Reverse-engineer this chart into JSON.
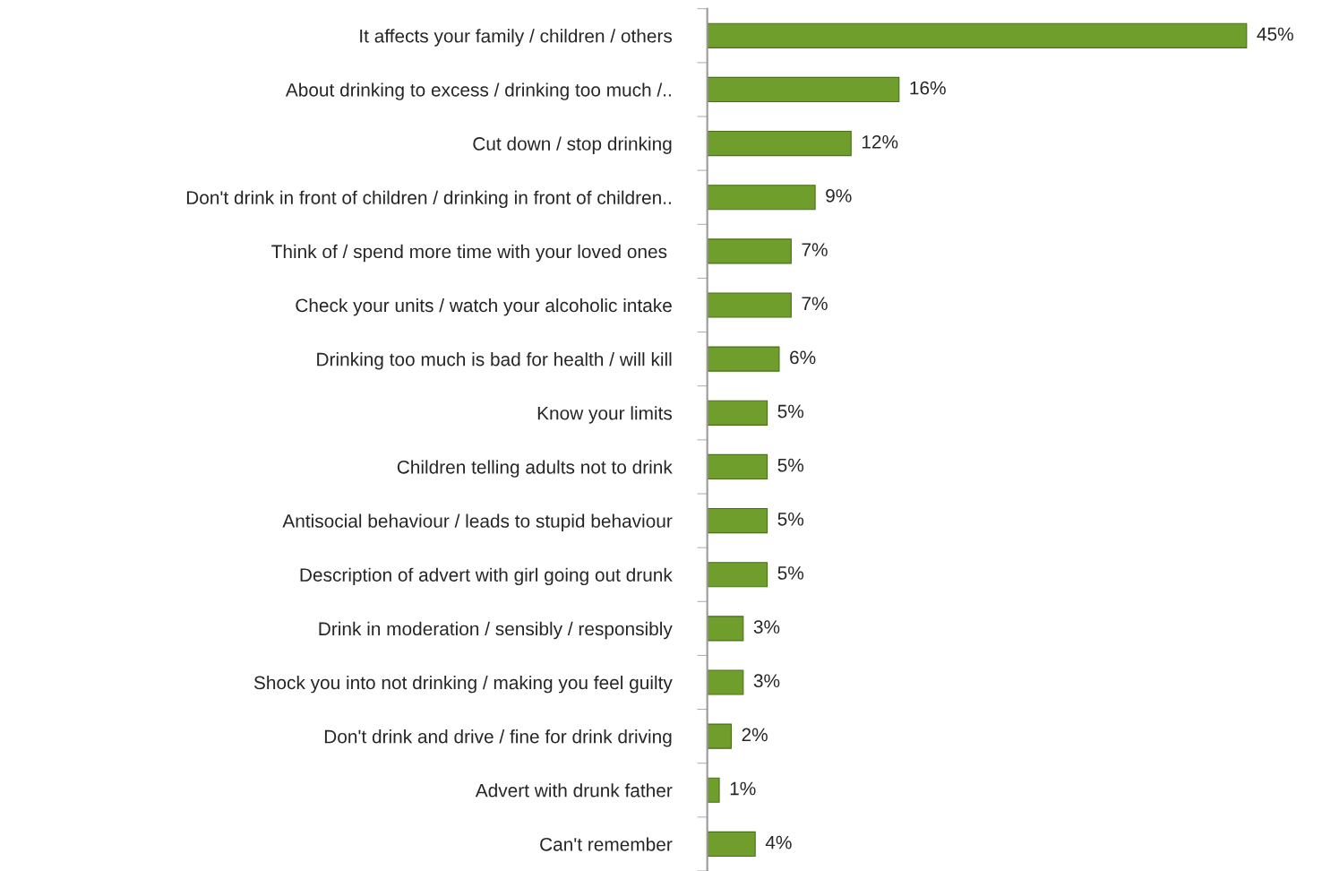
{
  "chart_data": {
    "type": "bar",
    "orientation": "horizontal",
    "categories": [
      "It affects your family / children / others",
      "About drinking to excess / drinking too much /..",
      "Cut down / stop drinking",
      "Don't drink in front of children / drinking in front of children..",
      "Think of / spend more time with your loved ones ",
      "Check your units / watch your alcoholic intake",
      "Drinking too much is bad for health / will kill",
      "Know your limits",
      "Children telling adults not to drink",
      "Antisocial behaviour / leads to stupid behaviour",
      "Description of advert with girl going out drunk",
      "Drink in moderation / sensibly / responsibly",
      "Shock you into not drinking / making you feel guilty",
      "Don't drink and drive / fine for drink driving",
      "Advert with drunk father",
      "Can't remember"
    ],
    "values": [
      45,
      16,
      12,
      9,
      7,
      7,
      6,
      5,
      5,
      5,
      5,
      3,
      3,
      2,
      1,
      4
    ],
    "value_labels": [
      "45%",
      "16%",
      "12%",
      "9%",
      "7%",
      "7%",
      "6%",
      "5%",
      "5%",
      "5%",
      "5%",
      "3%",
      "3%",
      "2%",
      "1%",
      "4%"
    ],
    "color": "#6f9e2c",
    "grid": false,
    "legend": false
  }
}
